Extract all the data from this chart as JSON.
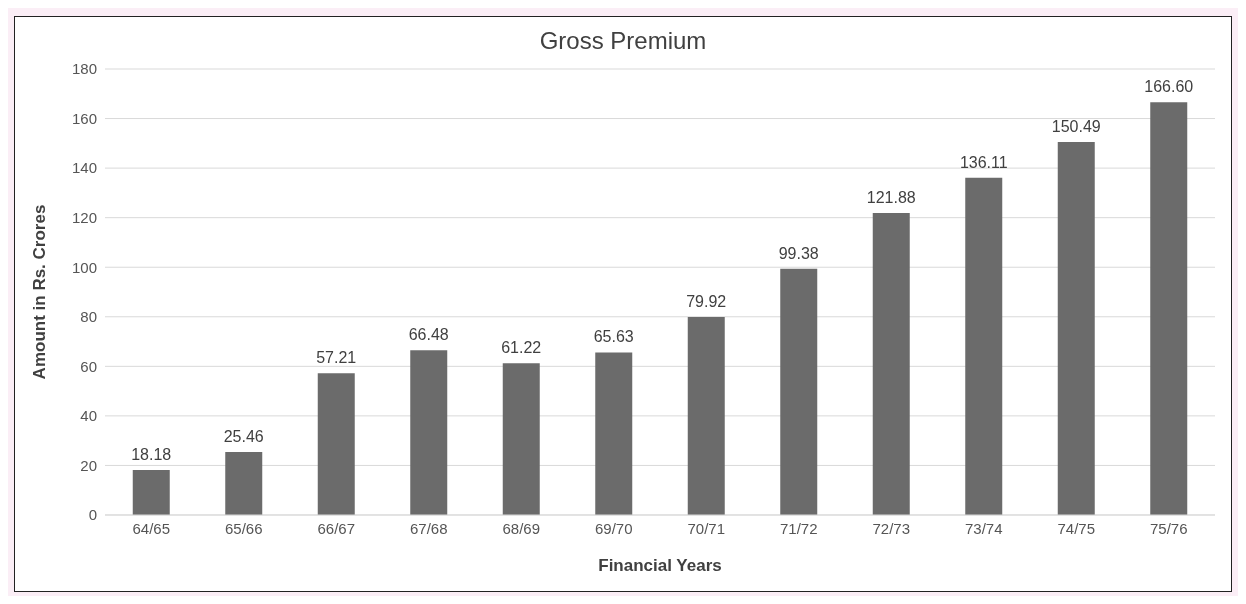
{
  "chart_data": {
    "type": "bar",
    "title": "Gross Premium",
    "xlabel": "Financial Years",
    "ylabel": "Amount in Rs. Crores",
    "categories": [
      "64/65",
      "65/66",
      "66/67",
      "67/68",
      "68/69",
      "69/70",
      "70/71",
      "71/72",
      "72/73",
      "73/74",
      "74/75",
      "75/76"
    ],
    "values": [
      18.18,
      25.46,
      57.21,
      66.48,
      61.22,
      65.63,
      79.92,
      99.38,
      121.88,
      136.11,
      150.49,
      166.6
    ],
    "value_labels": [
      "18.18",
      "25.46",
      "57.21",
      "66.48",
      "61.22",
      "65.63",
      "79.92",
      "99.38",
      "121.88",
      "136.11",
      "150.49",
      "166.60"
    ],
    "color": "#6b6b6b",
    "ylim": [
      0,
      180
    ],
    "yticks": [
      0,
      20,
      40,
      60,
      80,
      100,
      120,
      140,
      160,
      180
    ],
    "grid": "y"
  }
}
